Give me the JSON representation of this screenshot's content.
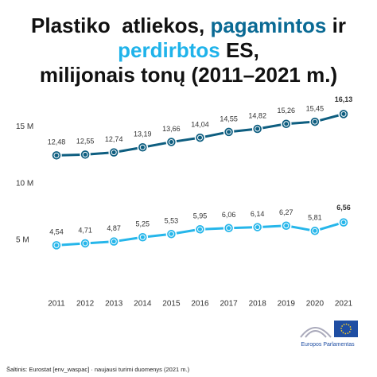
{
  "chart_data": {
    "type": "line",
    "title": [
      [
        {
          "text": "Plastiko  atliekos, "
        },
        {
          "text": "pagamintos",
          "color": "#0a6a94"
        },
        {
          "text": " ir"
        }
      ],
      [
        {
          "text": "perdirbtos",
          "color": "#1fb3ea"
        },
        {
          "text": " ES,"
        }
      ],
      [
        {
          "text": "milijonais tonų (2011–2021 m.)"
        }
      ]
    ],
    "categories": [
      "2011",
      "2012",
      "2013",
      "2014",
      "2015",
      "2016",
      "2017",
      "2018",
      "2019",
      "2020",
      "2021"
    ],
    "series": [
      {
        "color": "#0e5e80",
        "values": [
          12.48,
          12.55,
          12.74,
          13.19,
          13.66,
          14.04,
          14.55,
          14.82,
          15.26,
          15.45,
          16.13
        ],
        "value_labels": [
          "12,48",
          "12,55",
          "12,74",
          "13,19",
          "13,66",
          "14,04",
          "14,55",
          "14,82",
          "15,26",
          "15,45",
          "16,13"
        ]
      },
      {
        "color": "#26b6ea",
        "values": [
          4.54,
          4.71,
          4.87,
          5.25,
          5.53,
          5.95,
          6.06,
          6.14,
          6.27,
          5.81,
          6.56
        ],
        "value_labels": [
          "4,54",
          "4,71",
          "4,87",
          "5,25",
          "5,53",
          "5,95",
          "6,06",
          "6,14",
          "6,27",
          "5,81",
          "6,56"
        ]
      }
    ],
    "ylim": [
      0,
      17
    ],
    "yticks": [
      {
        "value": 5,
        "label": "5 M"
      },
      {
        "value": 10,
        "label": "10 M"
      },
      {
        "value": 15,
        "label": "15 M"
      }
    ],
    "source": "Šaltinis: Eurostat [env_waspac] · naujausi turimi duomenys (2021 m.)",
    "logo": "Europos Parlamentas"
  }
}
